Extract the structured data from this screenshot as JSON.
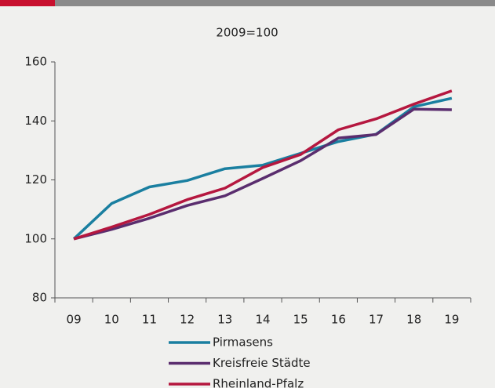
{
  "chart_data": {
    "type": "line",
    "title": "2009=100",
    "categories": [
      "09",
      "10",
      "11",
      "12",
      "13",
      "14",
      "15",
      "16",
      "17",
      "18",
      "19"
    ],
    "series": [
      {
        "name": "Pirmasens",
        "color": "#1a7fa0",
        "values": [
          100,
          112,
          117.6,
          119.8,
          123.8,
          125,
          129,
          133,
          135.5,
          144.8,
          147.7
        ]
      },
      {
        "name": "Kreisfreie Städte",
        "color": "#5a2d6e",
        "values": [
          100,
          103.2,
          107,
          111.3,
          114.6,
          120.5,
          126.5,
          134.2,
          135.4,
          144,
          143.8
        ]
      },
      {
        "name": "Rheinland-Pfalz",
        "color": "#b5173f",
        "values": [
          100,
          104,
          108.3,
          113.3,
          117.2,
          124.2,
          128.6,
          137,
          140.7,
          145.7,
          150.2
        ]
      }
    ],
    "ylim": [
      80,
      160
    ],
    "yticks": [
      80,
      100,
      120,
      140,
      160
    ],
    "grid": false
  }
}
